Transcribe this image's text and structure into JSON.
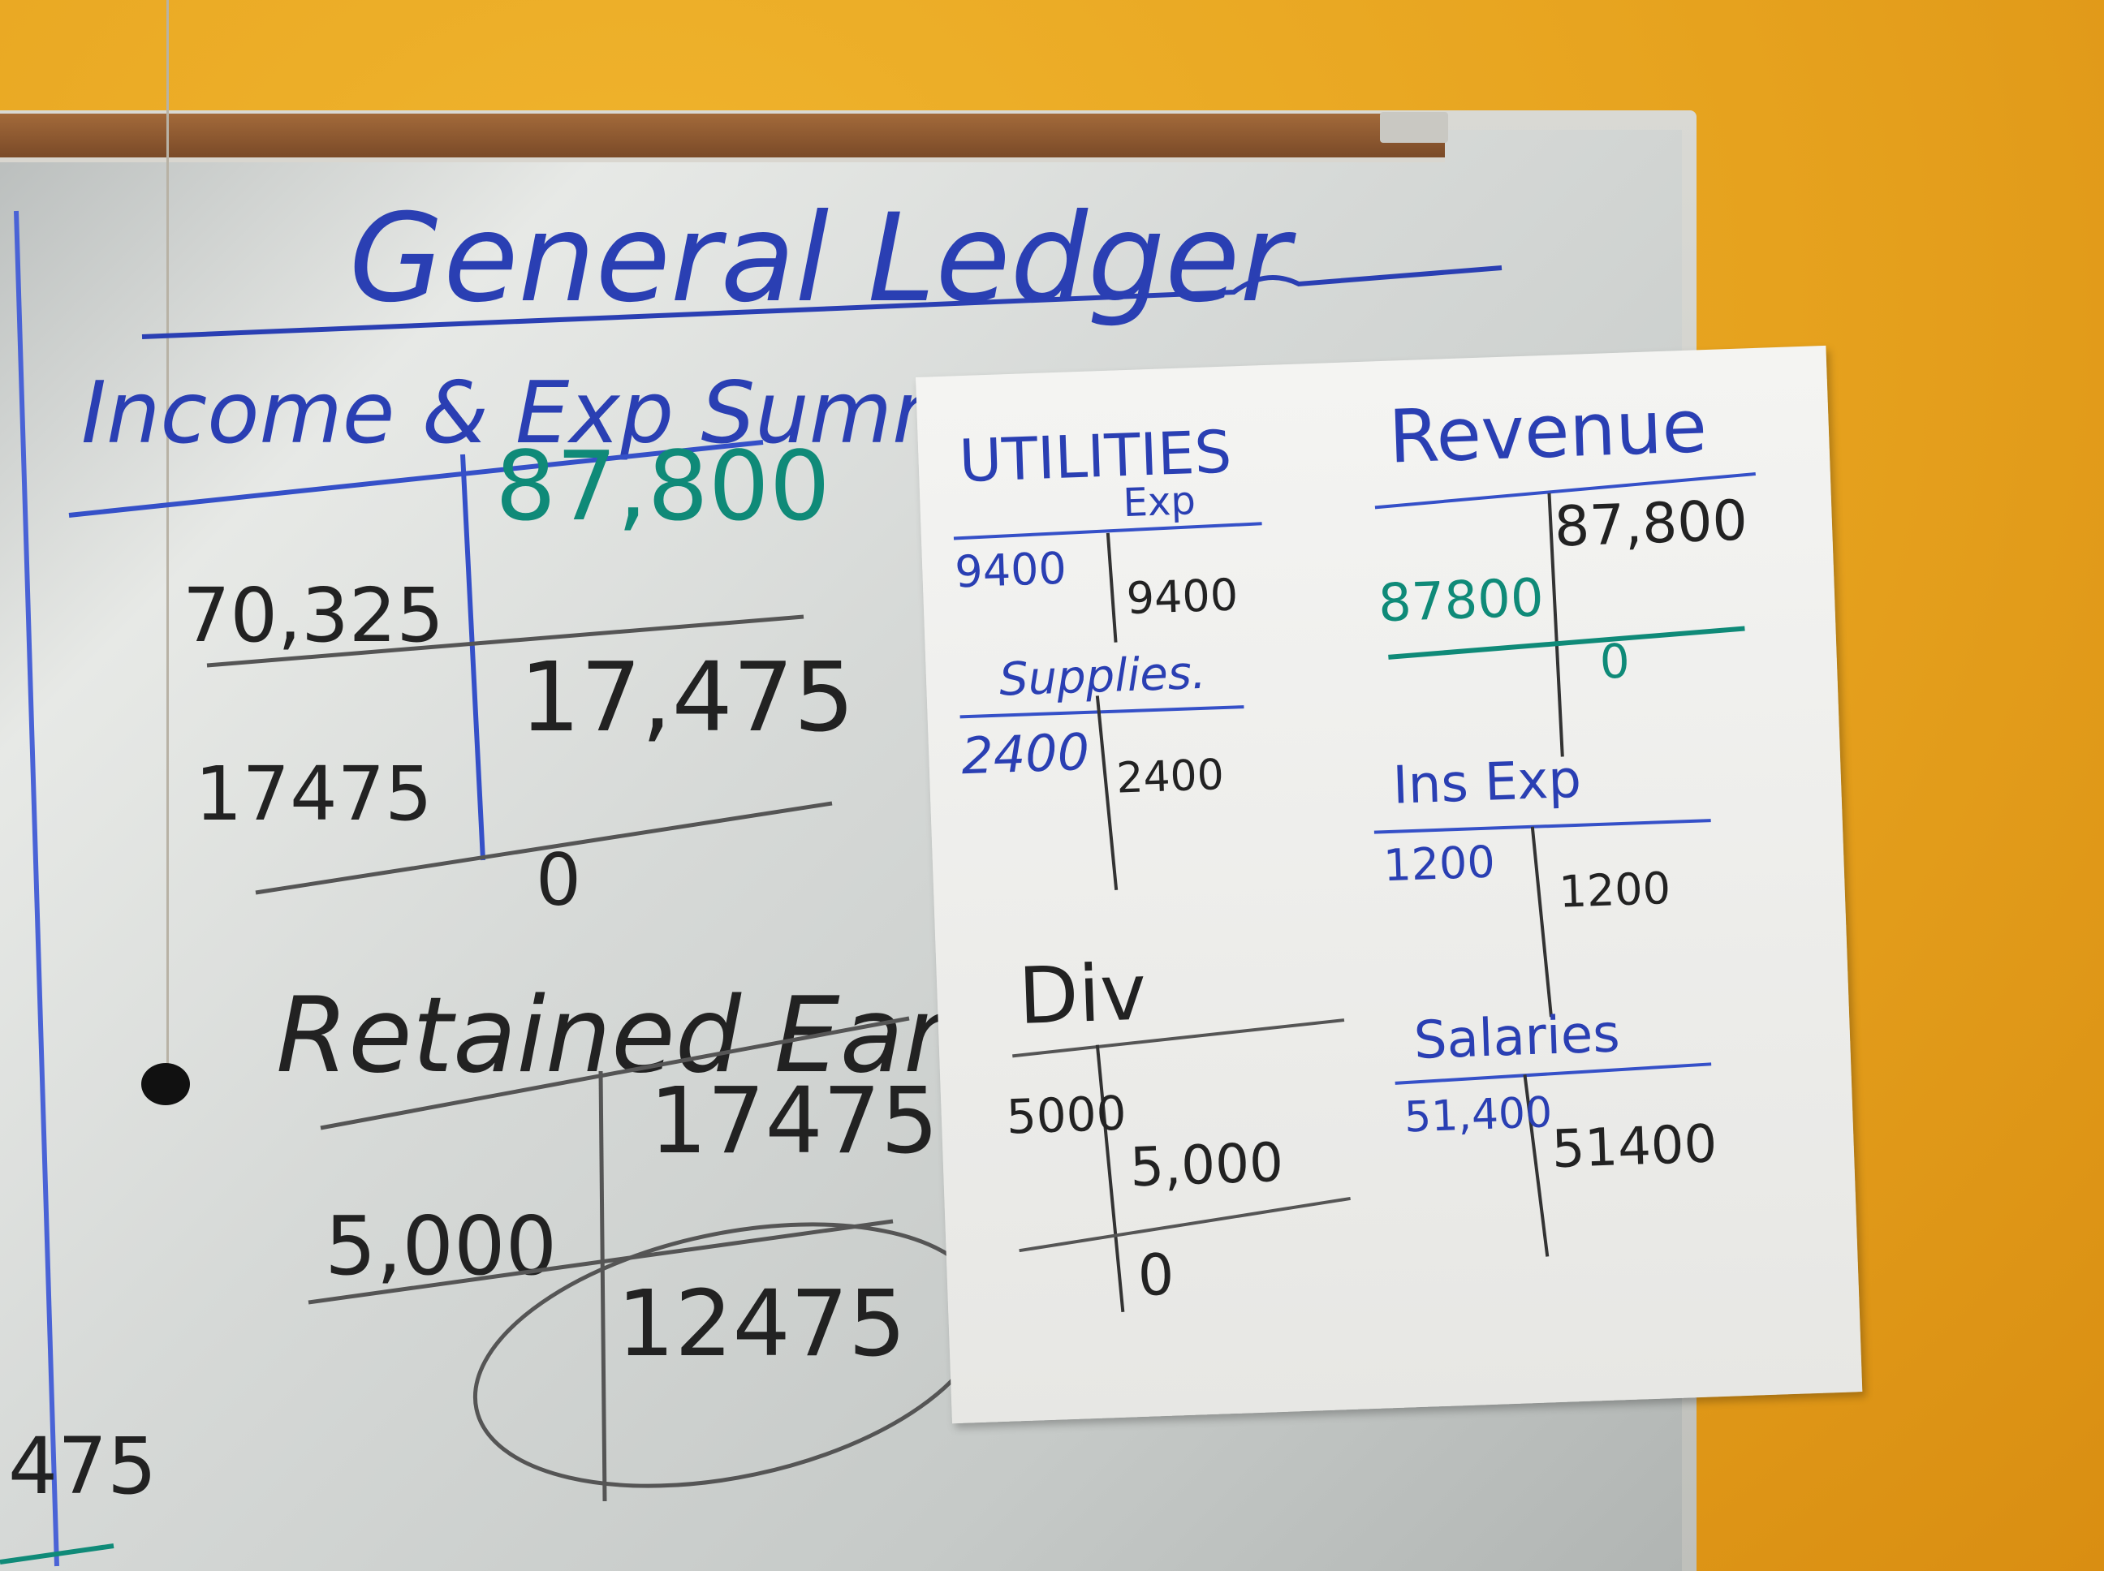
{
  "board": {
    "title": "General Ledger",
    "income_summary": {
      "heading": "Income & Exp Summary",
      "credit_top": "87,800",
      "debit_1": "70,325",
      "credit_balance": "17,475",
      "debit_2": "17475",
      "zero": "0"
    },
    "retained_earnings": {
      "heading": "Retained Earnings",
      "credit_1": "17475",
      "debit_1": "5,000",
      "balance": "12475"
    },
    "edge_number": "475"
  },
  "sheet": {
    "utilities": {
      "heading": "UTILITIES",
      "sub": "Exp",
      "debit": "9400",
      "credit": "9400"
    },
    "supplies": {
      "heading": "Supplies.",
      "debit": "2400",
      "credit": "2400"
    },
    "dividends": {
      "heading": "Div",
      "debit": "5000",
      "credit": "5,000",
      "zero": "0"
    },
    "revenue": {
      "heading": "Revenue",
      "credit": "87,800",
      "debit": "87800",
      "zero": "0"
    },
    "insurance": {
      "heading": "Ins Exp",
      "debit": "1200",
      "credit": "1200"
    },
    "salaries": {
      "heading": "Salaries",
      "debit": "51,400",
      "credit": "51400"
    }
  },
  "colors": {
    "blue_marker": "#2a3fb3",
    "green_marker": "#0f8a78",
    "black_marker": "#222222"
  }
}
